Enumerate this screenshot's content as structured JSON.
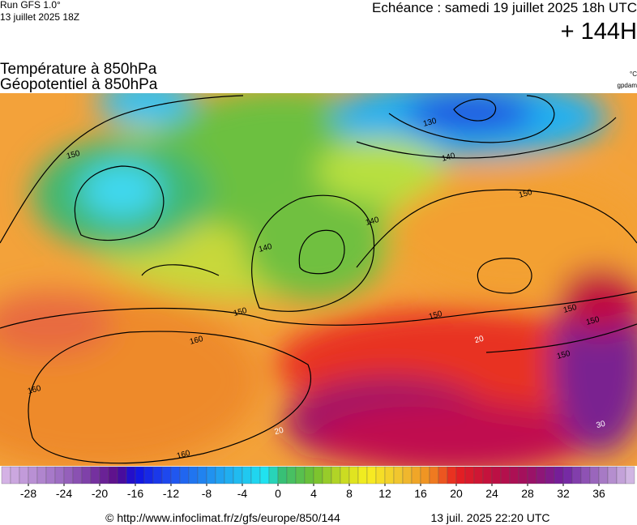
{
  "header": {
    "run": "Run GFS 1.0°",
    "run_date": "13 juillet 2025 18Z",
    "echeance": "Echéance : samedi 19 juillet 2025 18h UTC",
    "lead": "+ 144H"
  },
  "title": {
    "line1": "Température à 850hPa",
    "line2": "Géopotentiel à 850hPa",
    "unit_temp": "°C",
    "unit_geo": "gpdam"
  },
  "map": {
    "contour_labels": [
      "130",
      "140",
      "150",
      "150",
      "140",
      "140",
      "150",
      "150",
      "150",
      "150",
      "150",
      "160",
      "160",
      "160",
      "20",
      "20",
      "30"
    ]
  },
  "colorbar": {
    "lim": [
      -31,
      40
    ],
    "ticks": [
      -28,
      -24,
      -20,
      -16,
      -12,
      -8,
      -4,
      0,
      4,
      8,
      12,
      16,
      20,
      24,
      28,
      32,
      36
    ]
  },
  "footer": {
    "source": "© http://www.infoclimat.fr/z/gfs/europe/850/144",
    "generated": "13 juil. 2025 22:20 UTC"
  }
}
